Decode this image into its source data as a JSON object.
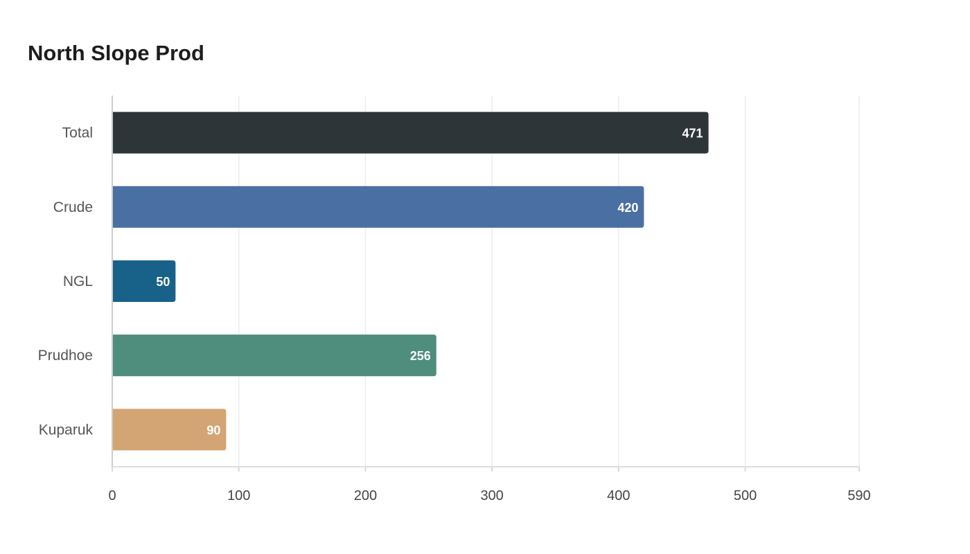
{
  "chart_data": {
    "type": "bar",
    "orientation": "horizontal",
    "title": "North Slope Prod",
    "xlabel": "",
    "ylabel": "",
    "categories": [
      "Total",
      "Crude",
      "NGL",
      "Prudhoe",
      "Kuparuk"
    ],
    "values": [
      471,
      420,
      50,
      256,
      90
    ],
    "colors": [
      "#2e3538",
      "#4a6fa2",
      "#186289",
      "#4f8d7c",
      "#d3a574"
    ],
    "xlim": [
      0,
      590
    ],
    "x_ticks": [
      0,
      100,
      200,
      300,
      400,
      500,
      590
    ],
    "grid": true,
    "legend": "none"
  }
}
